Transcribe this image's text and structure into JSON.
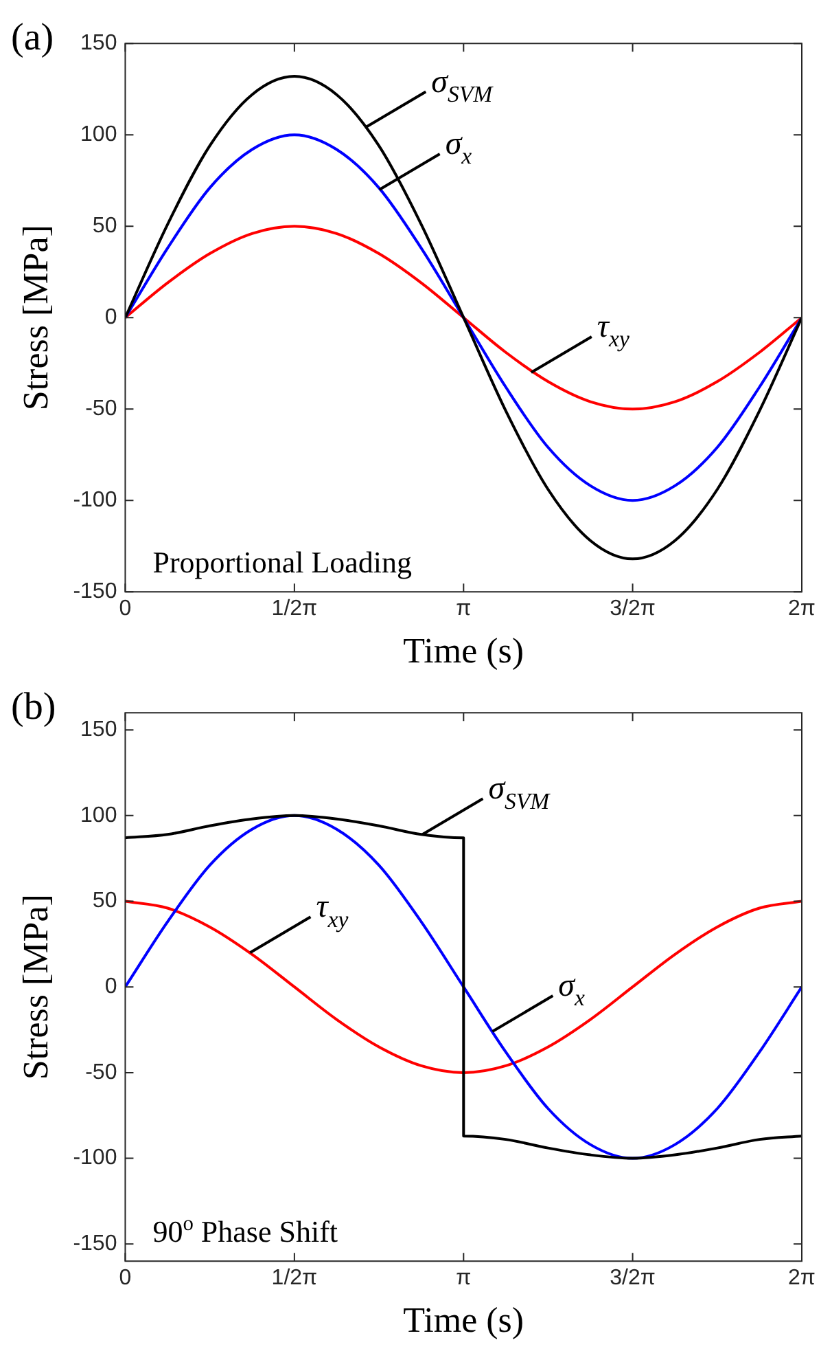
{
  "chart_data": [
    {
      "type": "line",
      "title": "(a)",
      "xlabel": "Time (s)",
      "ylabel": "Stress [MPa]",
      "x": [
        0,
        0.393,
        0.785,
        1.178,
        1.571,
        1.963,
        2.356,
        2.749,
        3.142,
        3.534,
        3.927,
        4.32,
        4.712,
        5.105,
        5.498,
        5.89,
        6.283
      ],
      "series": [
        {
          "color": "#000000",
          "values": [
            0,
            51,
            94,
            122,
            132,
            122,
            94,
            51,
            0,
            -51,
            -94,
            -122,
            -132,
            -122,
            -94,
            -51,
            0
          ]
        },
        {
          "color": "#0000ff",
          "values": [
            0,
            38,
            71,
            92,
            100,
            92,
            71,
            38,
            0,
            -38,
            -71,
            -92,
            -100,
            -92,
            -71,
            -38,
            0
          ]
        },
        {
          "color": "#ff0000",
          "values": [
            0,
            19,
            35,
            46,
            50,
            46,
            35,
            19,
            0,
            -19,
            -35,
            -46,
            -50,
            -46,
            -35,
            -19,
            0
          ]
        }
      ],
      "xlim": [
        0,
        6.283
      ],
      "xticks": [
        0,
        {
          "value": 1.571,
          "label": "1/2π"
        },
        {
          "value": 3.142,
          "label": "π"
        },
        {
          "value": 4.712,
          "label": "3/2π"
        },
        {
          "value": 6.283,
          "label": "2π"
        }
      ],
      "ylim": [
        -150,
        150
      ],
      "yticks": [
        -150,
        -100,
        -50,
        0,
        50,
        100,
        150
      ],
      "annotations": [
        {
          "text": "σ$_{SVM}$",
          "x": 2.23,
          "y": 104
        },
        {
          "text": "σ$_{x}$",
          "x": 2.36,
          "y": 70
        },
        {
          "text": "τ$_{xy}$",
          "x": 3.77,
          "y": -30
        },
        "Proportional Loading"
      ]
    },
    {
      "type": "line",
      "title": "(b)",
      "xlabel": "Time (s)",
      "ylabel": "Stress [MPa]",
      "x": [
        0,
        0.393,
        0.785,
        1.178,
        1.571,
        1.963,
        2.356,
        2.749,
        3.142,
        3.534,
        3.927,
        4.32,
        4.712,
        5.105,
        5.498,
        5.89,
        6.283
      ],
      "series": [
        {
          "color": "#000000",
          "x": [
            0,
            0.393,
            0.785,
            1.178,
            1.571,
            1.963,
            2.356,
            2.749,
            3.142,
            3.142,
            3.534,
            3.927,
            4.32,
            4.712,
            5.105,
            5.498,
            5.89,
            6.283
          ],
          "values": [
            87,
            89,
            94,
            98,
            100,
            98,
            94,
            89,
            87,
            -87,
            -89,
            -94,
            -98,
            -100,
            -98,
            -94,
            -89,
            -87
          ]
        },
        {
          "color": "#0000ff",
          "values": [
            0,
            38,
            71,
            92,
            100,
            92,
            71,
            38,
            0,
            -38,
            -71,
            -92,
            -100,
            -92,
            -71,
            -38,
            0
          ]
        },
        {
          "color": "#ff0000",
          "values": [
            50,
            46,
            35,
            19,
            0,
            -19,
            -35,
            -46,
            -50,
            -46,
            -35,
            -19,
            0,
            19,
            35,
            46,
            50
          ]
        }
      ],
      "xlim": [
        0,
        6.283
      ],
      "xticks": [
        0,
        {
          "value": 1.571,
          "label": "1/2π"
        },
        {
          "value": 3.142,
          "label": "π"
        },
        {
          "value": 4.712,
          "label": "3/2π"
        },
        {
          "value": 6.283,
          "label": "2π"
        }
      ],
      "ylim": [
        -160,
        160
      ],
      "yticks": [
        -150,
        -100,
        -50,
        0,
        50,
        100,
        150
      ],
      "annotations": [
        {
          "text": "σ$_{SVM}$",
          "x": 2.76,
          "y": 89
        },
        {
          "text": "τ$_{xy}$",
          "x": 1.16,
          "y": 20
        },
        {
          "text": "σ$_{x}$",
          "x": 3.41,
          "y": -26
        },
        "90$^{o}$ Phase Shift"
      ]
    }
  ]
}
